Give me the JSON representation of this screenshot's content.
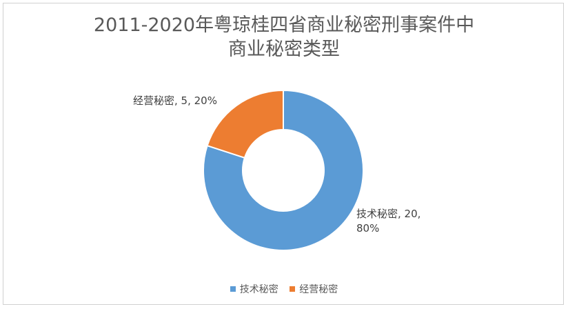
{
  "chart_data": {
    "type": "pie",
    "donut": true,
    "title_lines": [
      "2011-2020年粤琼桂四省商业秘密刑事案件中",
      "商业秘密类型"
    ],
    "slices": [
      {
        "label": "技术秘密",
        "value": 20,
        "percent": "80%",
        "color": "#5b9bd5",
        "label_lines": [
          "技术秘密, 20,",
          "80%"
        ]
      },
      {
        "label": "经营秘密",
        "value": 5,
        "percent": "20%",
        "color": "#ed7d31",
        "label_lines": [
          "经营秘密, 5, 20%"
        ]
      }
    ],
    "legend": {
      "position": "bottom"
    }
  }
}
